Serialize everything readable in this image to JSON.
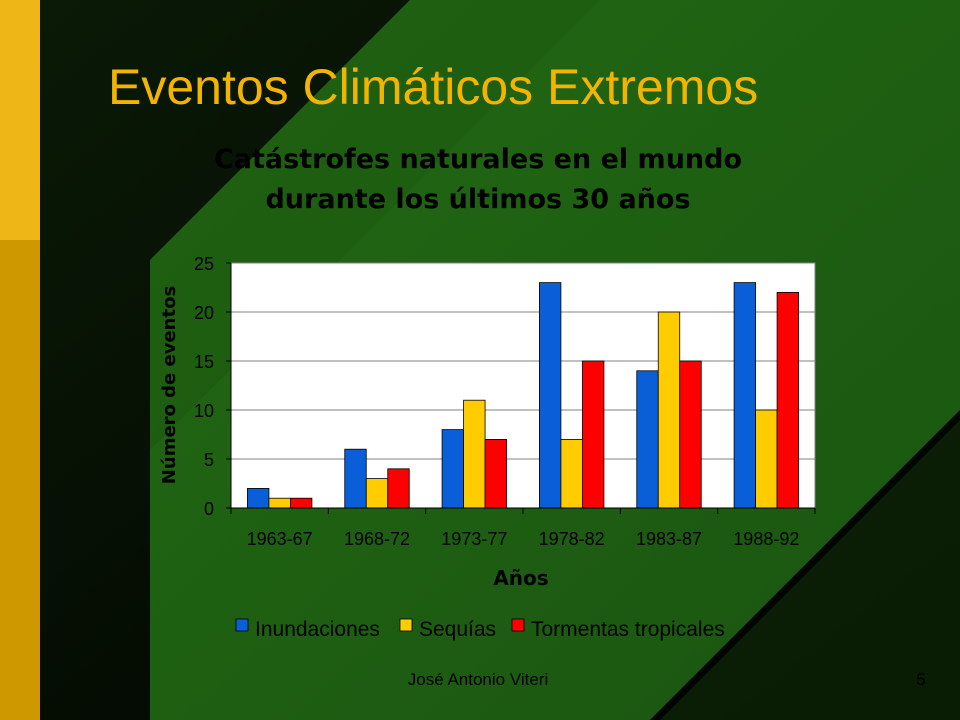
{
  "slide": {
    "title": "Eventos Climáticos Extremos",
    "footer_author": "José Antonio Viteri",
    "page_number": "5"
  },
  "colors": {
    "title": "#F2B400",
    "background_green": "#1E5C0F",
    "sidebar_gold": "#E8B010",
    "chart_plot_bg": "#FFFFFF"
  },
  "chart_data": {
    "type": "bar",
    "title_lines": [
      "Catástrofes naturales en el mundo",
      "durante los últimos 30 años"
    ],
    "xlabel": "Años",
    "ylabel": "Número de eventos",
    "categories": [
      "1963-67",
      "1968-72",
      "1973-77",
      "1978-82",
      "1983-87",
      "1988-92"
    ],
    "ylim": [
      0,
      25
    ],
    "yticks": [
      0,
      5,
      10,
      15,
      20,
      25
    ],
    "grid": true,
    "legend_position": "bottom",
    "series": [
      {
        "name": "Inundaciones",
        "color": "#0A5FD8",
        "values": [
          2,
          6,
          8,
          23,
          14,
          23
        ]
      },
      {
        "name": "Sequías",
        "color": "#FFCC00",
        "values": [
          1,
          3,
          11,
          7,
          20,
          10
        ]
      },
      {
        "name": "Tormentas tropicales",
        "color": "#FF0000",
        "values": [
          1,
          4,
          7,
          15,
          15,
          22
        ]
      }
    ]
  }
}
